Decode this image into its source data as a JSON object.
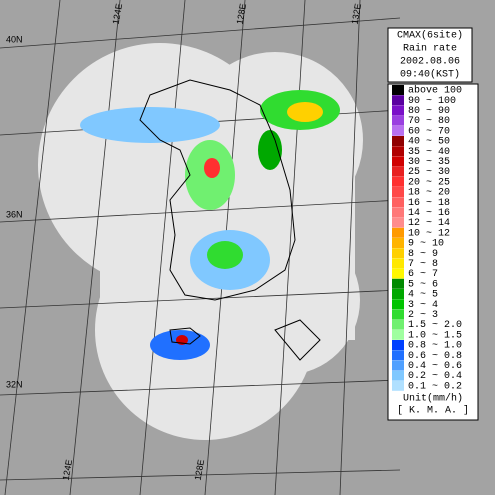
{
  "title_box": {
    "lines": [
      "CMAX(6site)",
      "Rain rate",
      "2002.08.06",
      "09:40(KST)"
    ]
  },
  "legend": {
    "items": [
      {
        "label": "above 100",
        "color": "#000000"
      },
      {
        "label": "90 ~ 100",
        "color": "#5a00a0"
      },
      {
        "label": "80 ~ 90",
        "color": "#7a10c8"
      },
      {
        "label": "70 ~ 80",
        "color": "#9a40e0"
      },
      {
        "label": "60 ~ 70",
        "color": "#b870f0"
      },
      {
        "label": "40 ~ 50",
        "color": "#900000"
      },
      {
        "label": "35 ~ 40",
        "color": "#b00000"
      },
      {
        "label": "30 ~ 35",
        "color": "#d00000"
      },
      {
        "label": "25 ~ 30",
        "color": "#e82020"
      },
      {
        "label": "20 ~ 25",
        "color": "#ff3030"
      },
      {
        "label": "18 ~ 20",
        "color": "#ff4848"
      },
      {
        "label": "16 ~ 18",
        "color": "#ff6060"
      },
      {
        "label": "14 ~ 16",
        "color": "#ff7878"
      },
      {
        "label": "12 ~ 14",
        "color": "#ff8c8c"
      },
      {
        "label": "10 ~ 12",
        "color": "#ff9a00"
      },
      {
        "label": "9 ~ 10",
        "color": "#ffb400"
      },
      {
        "label": "8 ~ 9",
        "color": "#ffd000"
      },
      {
        "label": "7 ~ 8",
        "color": "#ffe800"
      },
      {
        "label": "6 ~ 7",
        "color": "#fff800"
      },
      {
        "label": "5 ~ 6",
        "color": "#008a00"
      },
      {
        "label": "4 ~ 5",
        "color": "#00a800"
      },
      {
        "label": "3 ~ 4",
        "color": "#00c400"
      },
      {
        "label": "2 ~ 3",
        "color": "#30dc30"
      },
      {
        "label": "1.5 ~ 2.0",
        "color": "#70f070"
      },
      {
        "label": "1.0 ~ 1.5",
        "color": "#a0ffa0"
      },
      {
        "label": "0.8 ~ 1.0",
        "color": "#0040ff"
      },
      {
        "label": "0.6 ~ 0.8",
        "color": "#2070ff"
      },
      {
        "label": "0.4 ~ 0.6",
        "color": "#50a0ff"
      },
      {
        "label": "0.2 ~ 0.4",
        "color": "#80c8ff"
      },
      {
        "label": "0.1 ~ 0.2",
        "color": "#b0e0ff"
      }
    ],
    "unit": "Unit(mm/h)",
    "source": "[ K. M. A. ]"
  },
  "axes": {
    "lat": [
      "40N",
      "36N",
      "32N"
    ],
    "lon_top": [
      "124E",
      "128E",
      "132E"
    ],
    "lon_bottom": [
      "124E",
      "128E"
    ]
  }
}
